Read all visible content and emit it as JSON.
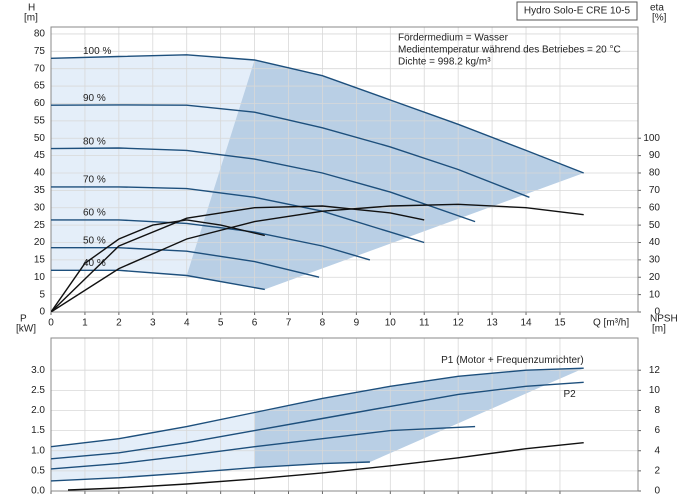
{
  "chart_data": [
    {
      "type": "line",
      "title": "Hydro Solo-E CRE 10-5",
      "annotations": [
        "Fördermedium = Wasser",
        "Medientemperatur während des Betriebes = 20 °C",
        "Dichte = 998.2 kg/m³"
      ],
      "ylabel": "H",
      "ylabel_unit": "[m]",
      "y2label": "eta",
      "y2label_unit": "[%]",
      "xlabel": "Q [m³/h]",
      "xlim": [
        0,
        17.3
      ],
      "xticks": [
        0,
        1,
        2,
        3,
        4,
        5,
        6,
        7,
        8,
        9,
        10,
        11,
        12,
        13,
        14,
        15
      ],
      "ylim": [
        0,
        82
      ],
      "yticks": [
        0,
        5,
        10,
        15,
        20,
        25,
        30,
        35,
        40,
        45,
        50,
        55,
        60,
        65,
        70,
        75,
        80
      ],
      "y2lim": [
        0,
        164
      ],
      "y2ticks": [
        0,
        10,
        20,
        30,
        40,
        50,
        60,
        70,
        80,
        90,
        100
      ],
      "grid": true,
      "area_color": "#e4eef9",
      "wedge_color": "#b9cfe5",
      "series": [
        {
          "name": "100 %",
          "color": "#1d4f7c",
          "x": [
            0,
            2,
            4,
            6,
            8,
            10,
            12,
            14,
            15.7
          ],
          "values": [
            73,
            73.5,
            74,
            72.5,
            68,
            61,
            54,
            46.5,
            40
          ]
        },
        {
          "name": "90 %",
          "color": "#1d4f7c",
          "x": [
            0,
            2,
            4,
            6,
            8,
            10,
            12,
            14.1
          ],
          "values": [
            59.5,
            59.6,
            59.5,
            57.5,
            53,
            47.5,
            41,
            33
          ]
        },
        {
          "name": "80 %",
          "color": "#1d4f7c",
          "x": [
            0,
            2,
            4,
            6,
            8,
            10,
            12.5
          ],
          "values": [
            47,
            47.2,
            46.5,
            44,
            40,
            34.5,
            26
          ]
        },
        {
          "name": "70 %",
          "color": "#1d4f7c",
          "x": [
            0,
            2,
            4,
            6,
            8,
            10,
            11
          ],
          "values": [
            36,
            36,
            35.5,
            33,
            29,
            23,
            20
          ]
        },
        {
          "name": "60 %",
          "color": "#1d4f7c",
          "x": [
            0,
            2,
            4,
            6,
            8,
            9.4
          ],
          "values": [
            26.5,
            26.5,
            25.5,
            23,
            19,
            15
          ]
        },
        {
          "name": "50 %",
          "color": "#1d4f7c",
          "x": [
            0,
            2,
            4,
            6,
            7.9
          ],
          "values": [
            18.5,
            18.5,
            17.5,
            14.5,
            10
          ]
        },
        {
          "name": "40 %",
          "color": "#1d4f7c",
          "x": [
            0,
            2,
            4,
            6.3
          ],
          "values": [
            12,
            12,
            10.5,
            6.5
          ]
        },
        {
          "color": "#111111",
          "axis": "y2",
          "x": [
            0,
            2,
            4,
            6,
            8,
            10,
            12,
            14,
            15.7
          ],
          "values": [
            0,
            25,
            42,
            52,
            58,
            61,
            62,
            60,
            56
          ]
        },
        {
          "color": "#111111",
          "axis": "y2",
          "x": [
            0,
            2,
            4,
            6,
            8,
            10,
            11
          ],
          "values": [
            0,
            38,
            54,
            60,
            61,
            57,
            53
          ]
        },
        {
          "color": "#111111",
          "axis": "y2",
          "x": [
            0,
            1,
            2,
            3,
            4,
            5,
            6.3
          ],
          "values": [
            0,
            28,
            42,
            50,
            53,
            50,
            44
          ]
        }
      ]
    },
    {
      "type": "line",
      "ylabel": "P",
      "ylabel_unit": "[kW]",
      "y2label": "NPSH",
      "y2label_unit": "[m]",
      "xlim": [
        0,
        17.3
      ],
      "xticks": [
        0,
        1,
        2,
        3,
        4,
        5,
        6,
        7,
        8,
        9,
        10,
        11,
        12,
        13,
        14,
        15
      ],
      "ylim": [
        0,
        3.8
      ],
      "yticks": [
        {
          "value": 0,
          "label": "0.0"
        },
        {
          "value": 0.5,
          "label": "0.5"
        },
        {
          "value": 1,
          "label": "1.0"
        },
        {
          "value": 1.5,
          "label": "1.5"
        },
        {
          "value": 2,
          "label": "2.0"
        },
        {
          "value": 2.5,
          "label": "2.5"
        },
        {
          "value": 3,
          "label": "3.0"
        }
      ],
      "y2lim": [
        0,
        15.2
      ],
      "y2ticks": [
        0,
        2,
        4,
        6,
        8,
        10,
        12
      ],
      "grid": true,
      "area_color": "#e4eef9",
      "wedge_color": "#b9cfe5",
      "series": [
        {
          "name": "P1 (Motor + Frequenzumrichter)",
          "color": "#1d4f7c",
          "x": [
            0,
            2,
            4,
            6,
            8,
            10,
            12,
            14,
            15.7
          ],
          "values": [
            1.1,
            1.3,
            1.6,
            1.95,
            2.3,
            2.6,
            2.85,
            3.0,
            3.05
          ]
        },
        {
          "name": "P2",
          "color": "#1d4f7c",
          "x": [
            0,
            2,
            4,
            6,
            8,
            10,
            12,
            14,
            15.7
          ],
          "values": [
            0.8,
            0.95,
            1.2,
            1.5,
            1.8,
            2.1,
            2.4,
            2.6,
            2.7
          ]
        },
        {
          "color": "#1d4f7c",
          "x": [
            0,
            2,
            4,
            6,
            8,
            10,
            12.5
          ],
          "values": [
            0.55,
            0.68,
            0.88,
            1.1,
            1.3,
            1.5,
            1.6
          ]
        },
        {
          "color": "#1d4f7c",
          "x": [
            0,
            2,
            4,
            6,
            8,
            9.4
          ],
          "values": [
            0.25,
            0.33,
            0.45,
            0.58,
            0.68,
            0.72
          ]
        },
        {
          "color": "#111111",
          "axis": "y2",
          "x": [
            0.5,
            2,
            4,
            6,
            8,
            10,
            12,
            14,
            15.7
          ],
          "values": [
            0.1,
            0.3,
            0.7,
            1.2,
            1.8,
            2.5,
            3.3,
            4.2,
            4.8
          ]
        }
      ]
    }
  ]
}
